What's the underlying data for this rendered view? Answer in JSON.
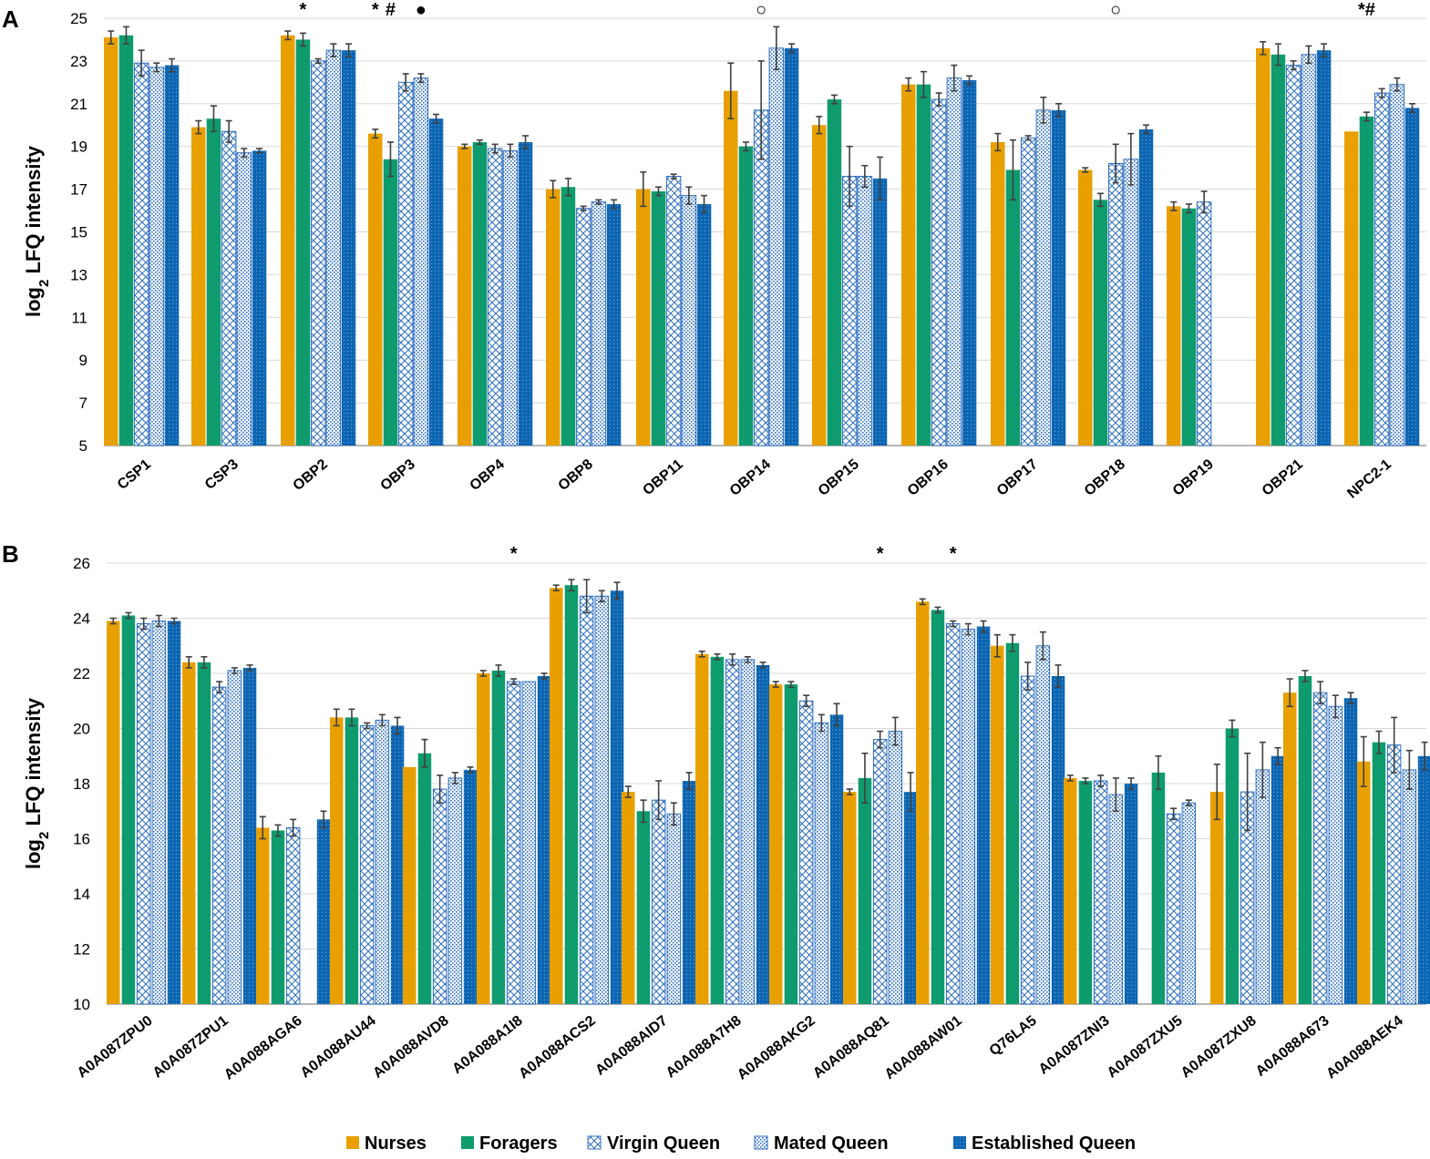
{
  "colors": {
    "nurses": "#E8A000",
    "foragers": "#0E9B6E",
    "virgin": "#2F6FC0",
    "mated": "#2F6FC0",
    "established": "#0D66B2",
    "grid": "#d9d9d9",
    "axis": "#9f9f9f",
    "errorbar": "#404040"
  },
  "legend": {
    "items": [
      {
        "key": "nurses",
        "label": "Nurses"
      },
      {
        "key": "foragers",
        "label": "Foragers"
      },
      {
        "key": "virgin",
        "label": "Virgin Queen"
      },
      {
        "key": "mated",
        "label": "Mated Queen"
      },
      {
        "key": "established",
        "label": "Established Queen"
      }
    ]
  },
  "chart_data": [
    {
      "panel": "A",
      "type": "bar",
      "ylabel_main": "log",
      "ylabel_sub": "2",
      "ylabel_rest": " LFQ intensity",
      "ylim": [
        5,
        25
      ],
      "yticks": [
        5,
        7,
        9,
        11,
        13,
        15,
        17,
        19,
        21,
        23,
        25
      ],
      "grid": true,
      "series_names": [
        "Nurses",
        "Foragers",
        "Virgin Queen",
        "Mated Queen",
        "Established Queen"
      ],
      "categories": [
        "CSP1",
        "CSP3",
        "OBP2",
        "OBP3",
        "OBP4",
        "OBP8",
        "OBP11",
        "OBP14",
        "OBP15",
        "OBP16",
        "OBP17",
        "OBP18",
        "OBP19",
        "OBP21",
        "NPC2-1"
      ],
      "values": [
        [
          24.1,
          24.2,
          22.9,
          22.7,
          22.8
        ],
        [
          19.9,
          20.3,
          19.7,
          18.7,
          18.8
        ],
        [
          24.2,
          24.0,
          23.0,
          23.5,
          23.5
        ],
        [
          19.6,
          18.4,
          22.0,
          22.2,
          20.3
        ],
        [
          19.0,
          19.2,
          18.9,
          18.8,
          19.2
        ],
        [
          17.0,
          17.1,
          16.1,
          16.4,
          16.3
        ],
        [
          17.0,
          16.9,
          17.6,
          16.7,
          16.3
        ],
        [
          21.6,
          19.0,
          20.7,
          23.6,
          23.6
        ],
        [
          20.0,
          21.2,
          17.6,
          17.6,
          17.5
        ],
        [
          21.9,
          21.9,
          21.2,
          22.2,
          22.1
        ],
        [
          19.2,
          17.9,
          19.4,
          20.7,
          20.7
        ],
        [
          17.9,
          16.5,
          18.2,
          18.4,
          19.8
        ],
        [
          16.2,
          16.1,
          16.4,
          null,
          null
        ],
        [
          23.6,
          23.3,
          22.8,
          23.3,
          23.5
        ],
        [
          19.7,
          20.4,
          21.5,
          21.9,
          20.8
        ]
      ],
      "errors": [
        [
          0.3,
          0.4,
          0.6,
          0.2,
          0.3
        ],
        [
          0.3,
          0.6,
          0.5,
          0.2,
          0.1
        ],
        [
          0.2,
          0.3,
          0.1,
          0.3,
          0.3
        ],
        [
          0.2,
          0.8,
          0.4,
          0.2,
          0.2
        ],
        [
          0.1,
          0.1,
          0.2,
          0.3,
          0.3
        ],
        [
          0.4,
          0.4,
          0.1,
          0.1,
          0.2
        ],
        [
          0.8,
          0.2,
          0.1,
          0.4,
          0.4
        ],
        [
          1.3,
          0.2,
          2.3,
          1.0,
          0.2
        ],
        [
          0.4,
          0.2,
          1.4,
          0.5,
          1.0
        ],
        [
          0.3,
          0.6,
          0.3,
          0.6,
          0.2
        ],
        [
          0.4,
          1.4,
          0.1,
          0.6,
          0.3
        ],
        [
          0.1,
          0.3,
          0.9,
          1.2,
          0.2
        ],
        [
          0.2,
          0.2,
          0.5,
          null,
          null
        ],
        [
          0.3,
          0.5,
          0.2,
          0.4,
          0.3
        ],
        [
          0.0,
          0.2,
          0.2,
          0.3,
          0.2
        ]
      ],
      "annotations": [
        {
          "category": "OBP2",
          "bar": 1,
          "text": "*"
        },
        {
          "category": "OBP3",
          "bar": 0,
          "text": "*"
        },
        {
          "category": "OBP3",
          "bar": 1,
          "text": "#"
        },
        {
          "category": "OBP3",
          "bar": 3,
          "text": "●"
        },
        {
          "category": "OBP14",
          "bar": 2,
          "text": "○"
        },
        {
          "category": "OBP18",
          "bar": 2,
          "text": "○"
        },
        {
          "category": "NPC2-1",
          "bar": 1,
          "text": "*#"
        }
      ]
    },
    {
      "panel": "B",
      "type": "bar",
      "ylabel_main": "log",
      "ylabel_sub": "2",
      "ylabel_rest": " LFQ intensity",
      "ylim": [
        10,
        26
      ],
      "yticks": [
        10,
        12,
        14,
        16,
        18,
        20,
        22,
        24,
        26
      ],
      "grid": true,
      "series_names": [
        "Nurses",
        "Foragers",
        "Virgin Queen",
        "Mated Queen",
        "Established Queen"
      ],
      "categories": [
        "A0A087ZPU0",
        "A0A087ZPU1",
        "A0A088AGA6",
        "A0A088AU44",
        "A0A088AVD8",
        "A0A088A1I8",
        "A0A088ACS2",
        "A0A088AID7",
        "A0A088A7H8",
        "A0A088AKG2",
        "A0A088AQ81",
        "A0A088AW01",
        "Q76LA5",
        "A0A087ZNI3",
        "A0A087ZXU5",
        "A0A087ZXU8",
        "A0A088A673",
        "A0A088AEK4"
      ],
      "values": [
        [
          23.9,
          24.1,
          23.8,
          23.9,
          23.9
        ],
        [
          22.4,
          22.4,
          21.5,
          22.1,
          22.2
        ],
        [
          16.4,
          16.3,
          16.4,
          null,
          16.7
        ],
        [
          20.4,
          20.4,
          20.1,
          20.3,
          20.1
        ],
        [
          18.6,
          19.1,
          17.8,
          18.2,
          18.5
        ],
        [
          22.0,
          22.1,
          21.7,
          21.7,
          21.9
        ],
        [
          25.1,
          25.2,
          24.8,
          24.8,
          25.0
        ],
        [
          17.7,
          17.0,
          17.4,
          16.9,
          18.1
        ],
        [
          22.7,
          22.6,
          22.5,
          22.5,
          22.3
        ],
        [
          21.6,
          21.6,
          21.0,
          20.2,
          20.5
        ],
        [
          17.7,
          18.2,
          19.6,
          19.9,
          17.7
        ],
        [
          24.6,
          24.3,
          23.8,
          23.6,
          23.7
        ],
        [
          23.0,
          23.1,
          21.9,
          23.0,
          21.9
        ],
        [
          18.2,
          18.1,
          18.1,
          17.6,
          18.0
        ],
        [
          null,
          18.4,
          16.9,
          17.3,
          null
        ],
        [
          17.7,
          20.0,
          17.7,
          18.5,
          19.0
        ],
        [
          21.3,
          21.9,
          21.3,
          20.8,
          21.1
        ],
        [
          18.8,
          19.5,
          19.4,
          18.5,
          19.0
        ]
      ],
      "errors": [
        [
          0.1,
          0.1,
          0.2,
          0.2,
          0.1
        ],
        [
          0.2,
          0.2,
          0.2,
          0.1,
          0.1
        ],
        [
          0.4,
          0.2,
          0.3,
          null,
          0.3
        ],
        [
          0.3,
          0.3,
          0.1,
          0.2,
          0.3
        ],
        [
          0.0,
          0.5,
          0.5,
          0.2,
          0.1
        ],
        [
          0.1,
          0.2,
          0.1,
          0.0,
          0.1
        ],
        [
          0.1,
          0.2,
          0.6,
          0.2,
          0.3
        ],
        [
          0.2,
          0.4,
          0.7,
          0.4,
          0.3
        ],
        [
          0.1,
          0.1,
          0.2,
          0.1,
          0.1
        ],
        [
          0.1,
          0.1,
          0.2,
          0.3,
          0.4
        ],
        [
          0.1,
          0.9,
          0.3,
          0.5,
          0.7
        ],
        [
          0.1,
          0.1,
          0.1,
          0.2,
          0.2
        ],
        [
          0.4,
          0.3,
          0.5,
          0.5,
          0.4
        ],
        [
          0.1,
          0.1,
          0.2,
          0.6,
          0.2
        ],
        [
          null,
          0.6,
          0.2,
          0.1,
          null
        ],
        [
          1.0,
          0.3,
          1.4,
          1.0,
          0.3
        ],
        [
          0.5,
          0.2,
          0.4,
          0.4,
          0.2
        ],
        [
          0.9,
          0.4,
          1.0,
          0.7,
          0.5
        ]
      ],
      "annotations": [
        {
          "category": "A0A088A1I8",
          "bar": 2,
          "text": "*"
        },
        {
          "category": "A0A088AQ81",
          "bar": 2,
          "text": "*"
        },
        {
          "category": "A0A088AW01",
          "bar": 2,
          "text": "*"
        }
      ]
    }
  ]
}
